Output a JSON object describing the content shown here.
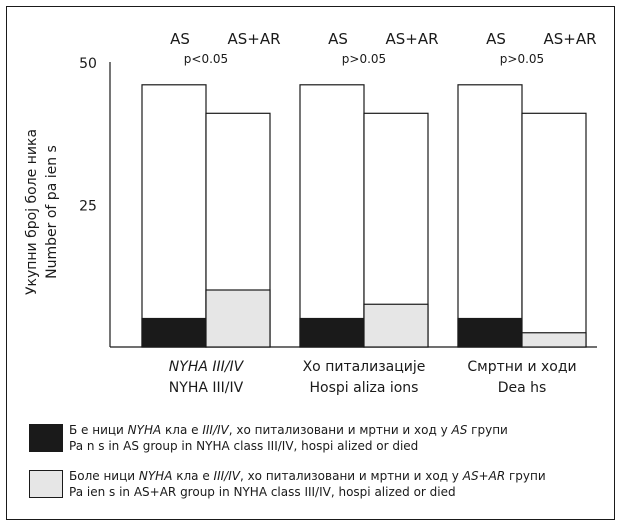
{
  "chart_data": {
    "type": "bar",
    "ylabel_sr": "Укупни број боле ника",
    "ylabel_en": "Number of pa ien s",
    "y_ticks": [
      "50",
      "25"
    ],
    "y_tick_values": [
      50,
      25
    ],
    "ylim": [
      0,
      50
    ],
    "bar_groups": [
      "AS",
      "AS+AR"
    ],
    "groups": [
      {
        "top_left": "AS",
        "top_right": "AS+AR",
        "pvalue": "p<0.05",
        "label_sr": "NYHA III/IV",
        "label_en": "NYHA III/IV",
        "bars": [
          {
            "group": "AS",
            "total": 46,
            "subset": 5
          },
          {
            "group": "AS+AR",
            "total": 41,
            "subset": 10
          }
        ]
      },
      {
        "top_left": "AS",
        "top_right": "AS+AR",
        "pvalue": "p>0.05",
        "label_sr": "Хо питализације",
        "label_en": "Hospi aliza ions",
        "bars": [
          {
            "group": "AS",
            "total": 46,
            "subset": 5
          },
          {
            "group": "AS+AR",
            "total": 41,
            "subset": 7.5
          }
        ]
      },
      {
        "top_left": "AS",
        "top_right": "AS+AR",
        "pvalue": "p>0.05",
        "label_sr": "Смртни и ходи",
        "label_en": "Dea hs",
        "bars": [
          {
            "group": "AS",
            "total": 46,
            "subset": 5
          },
          {
            "group": "AS+AR",
            "total": 41,
            "subset": 2.5
          }
        ]
      }
    ],
    "colors": {
      "as_subset": "#1a1a1a",
      "asar_subset": "#e6e6e6",
      "bar_fill": "#ffffff"
    }
  },
  "legend": [
    {
      "color": "#1a1a1a",
      "line1_parts": [
        {
          "t": "Б   е ници ",
          "i": false
        },
        {
          "t": "NYHA",
          "i": true
        },
        {
          "t": " кла  е ",
          "i": false
        },
        {
          "t": "III/IV",
          "i": true
        },
        {
          "t": ", хо  питализовани и   мртни и  ход у ",
          "i": false
        },
        {
          "t": "AS",
          "i": true
        },
        {
          "t": " групи",
          "i": false
        }
      ],
      "line2": "Pa    n s in AS group in NYHA class III/IV, hospi alized or died"
    },
    {
      "color": "#e6e6e6",
      "line1_parts": [
        {
          "t": "Боле ници ",
          "i": false
        },
        {
          "t": "NYHA",
          "i": true
        },
        {
          "t": " кла  е ",
          "i": false
        },
        {
          "t": "III/IV",
          "i": true
        },
        {
          "t": ", хо  питализовани и   мртни и  ход у ",
          "i": false
        },
        {
          "t": "AS+AR",
          "i": true
        },
        {
          "t": " групи",
          "i": false
        }
      ],
      "line2": "Pa ien s in AS+AR group in NYHA class III/IV, hospi alized or died"
    }
  ]
}
